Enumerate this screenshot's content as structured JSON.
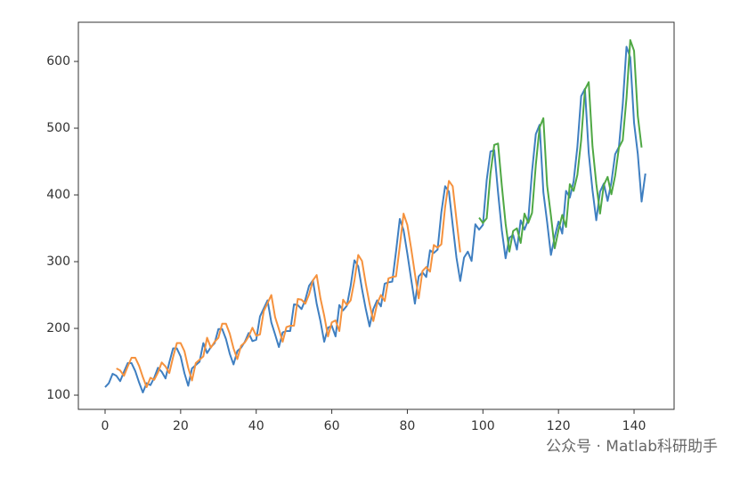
{
  "chart_data": {
    "type": "line",
    "x": [
      0,
      1,
      2,
      3,
      4,
      5,
      6,
      7,
      8,
      9,
      10,
      11,
      12,
      13,
      14,
      15,
      16,
      17,
      18,
      19,
      20,
      21,
      22,
      23,
      24,
      25,
      26,
      27,
      28,
      29,
      30,
      31,
      32,
      33,
      34,
      35,
      36,
      37,
      38,
      39,
      40,
      41,
      42,
      43,
      44,
      45,
      46,
      47,
      48,
      49,
      50,
      51,
      52,
      53,
      54,
      55,
      56,
      57,
      58,
      59,
      60,
      61,
      62,
      63,
      64,
      65,
      66,
      67,
      68,
      69,
      70,
      71,
      72,
      73,
      74,
      75,
      76,
      77,
      78,
      79,
      80,
      81,
      82,
      83,
      84,
      85,
      86,
      87,
      88,
      89,
      90,
      91,
      92,
      93,
      94,
      95,
      96,
      97,
      98,
      99,
      100,
      101,
      102,
      103,
      104,
      105,
      106,
      107,
      108,
      109,
      110,
      111,
      112,
      113,
      114,
      115,
      116,
      117,
      118,
      119,
      120,
      121,
      122,
      123,
      124,
      125,
      126,
      127,
      128,
      129,
      130,
      131,
      132,
      133,
      134,
      135,
      136,
      137,
      138,
      139,
      140,
      141,
      142,
      143
    ],
    "series": [
      {
        "color": "#3f7fc1",
        "values": [
          112,
          118,
          132,
          129,
          121,
          135,
          148,
          148,
          136,
          119,
          104,
          118,
          115,
          126,
          141,
          135,
          125,
          149,
          170,
          170,
          158,
          133,
          114,
          140,
          145,
          150,
          178,
          163,
          172,
          178,
          199,
          199,
          184,
          162,
          146,
          166,
          171,
          180,
          193,
          181,
          183,
          218,
          230,
          242,
          209,
          191,
          172,
          194,
          196,
          196,
          236,
          235,
          229,
          243,
          264,
          272,
          237,
          211,
          180,
          201,
          204,
          188,
          235,
          227,
          234,
          264,
          302,
          293,
          259,
          229,
          203,
          229,
          242,
          233,
          267,
          269,
          270,
          315,
          364,
          347,
          312,
          274,
          237,
          278,
          284,
          277,
          317,
          313,
          318,
          374,
          413,
          405,
          355,
          306,
          271,
          306,
          315,
          301,
          356,
          348,
          355,
          422,
          465,
          467,
          404,
          347,
          305,
          336,
          340,
          318,
          362,
          348,
          363,
          435,
          491,
          505,
          404,
          359,
          310,
          337,
          360,
          342,
          406,
          396,
          420,
          472,
          548,
          559,
          463,
          407,
          362,
          405,
          417,
          391,
          419,
          461,
          472,
          535,
          622,
          606,
          508,
          461,
          390,
          432
        ]
      },
      {
        "color": "#f5923e",
        "values": [
          null,
          null,
          null,
          140,
          137,
          129,
          143,
          156,
          156,
          144,
          127,
          112,
          126,
          123,
          134,
          149,
          143,
          133,
          157,
          178,
          178,
          166,
          141,
          122,
          148,
          153,
          158,
          186,
          171,
          180,
          186,
          207,
          207,
          192,
          170,
          154,
          174,
          179,
          188,
          201,
          189,
          191,
          226,
          238,
          250,
          217,
          199,
          180,
          202,
          204,
          204,
          244,
          243,
          237,
          251,
          272,
          280,
          245,
          219,
          188,
          209,
          212,
          196,
          243,
          235,
          242,
          272,
          310,
          301,
          267,
          237,
          211,
          237,
          250,
          241,
          275,
          277,
          278,
          323,
          372,
          355,
          320,
          282,
          245,
          286,
          292,
          285,
          325,
          321,
          326,
          382,
          421,
          413,
          363,
          314,
          null,
          null,
          null,
          null,
          null,
          null,
          null,
          null,
          null,
          null,
          null,
          null,
          null,
          null,
          null,
          null,
          null,
          null,
          null,
          null,
          null,
          null,
          null,
          null,
          null,
          null,
          null,
          null,
          null,
          null,
          null,
          null,
          null,
          null,
          null,
          null,
          null,
          null,
          null,
          null,
          null,
          null,
          null,
          null,
          null,
          null,
          null,
          null,
          null
        ]
      },
      {
        "color": "#4fa844",
        "values": [
          null,
          null,
          null,
          null,
          null,
          null,
          null,
          null,
          null,
          null,
          null,
          null,
          null,
          null,
          null,
          null,
          null,
          null,
          null,
          null,
          null,
          null,
          null,
          null,
          null,
          null,
          null,
          null,
          null,
          null,
          null,
          null,
          null,
          null,
          null,
          null,
          null,
          null,
          null,
          null,
          null,
          null,
          null,
          null,
          null,
          null,
          null,
          null,
          null,
          null,
          null,
          null,
          null,
          null,
          null,
          null,
          null,
          null,
          null,
          null,
          null,
          null,
          null,
          null,
          null,
          null,
          null,
          null,
          null,
          null,
          null,
          null,
          null,
          null,
          null,
          null,
          null,
          null,
          null,
          null,
          null,
          null,
          null,
          null,
          null,
          null,
          null,
          null,
          null,
          null,
          null,
          null,
          null,
          null,
          null,
          null,
          null,
          null,
          null,
          366,
          358,
          365,
          432,
          475,
          477,
          414,
          357,
          315,
          346,
          350,
          328,
          372,
          358,
          373,
          445,
          501,
          515,
          414,
          369,
          320,
          347,
          370,
          352,
          416,
          406,
          430,
          482,
          558,
          569,
          473,
          417,
          372,
          415,
          427,
          401,
          429,
          471,
          482,
          545,
          632,
          616,
          518,
          471,
          null
        ]
      }
    ],
    "xlim": [
      -7.07,
      150.6
    ],
    "xticks": [
      0,
      20,
      40,
      60,
      80,
      100,
      120,
      140
    ],
    "ylim": [
      78.7,
      658.7
    ],
    "yticks": [
      100,
      200,
      300,
      400,
      500,
      600
    ],
    "watermark": "公众号 · Matlab科研助手"
  }
}
